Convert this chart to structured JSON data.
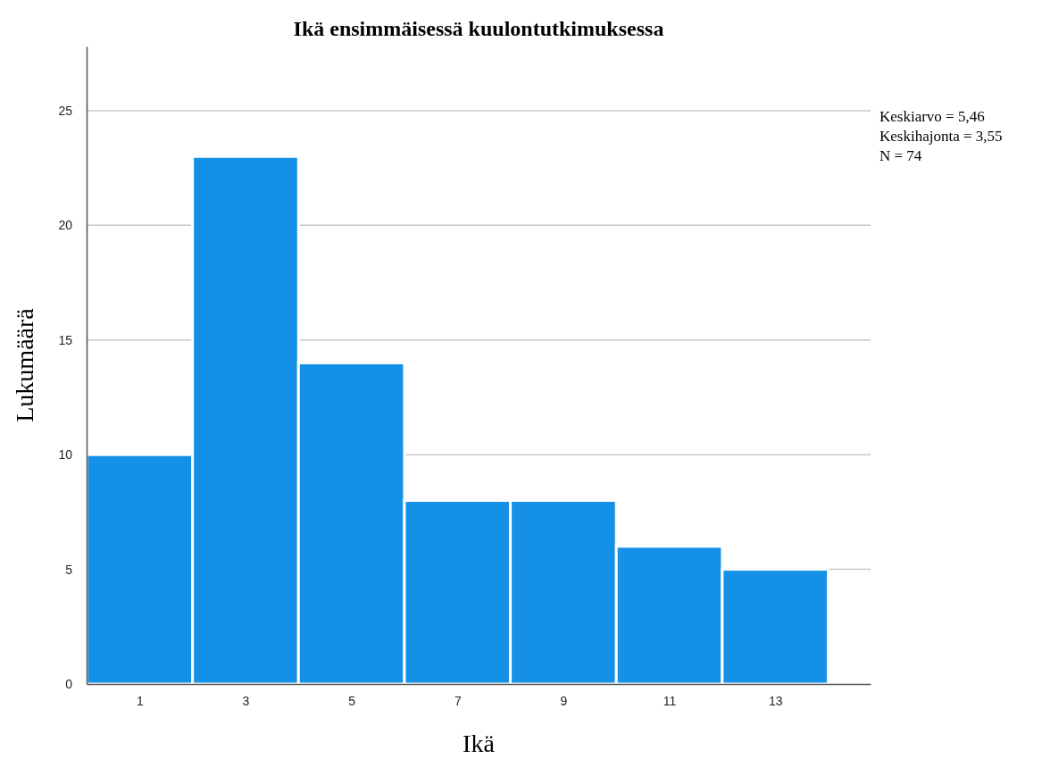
{
  "chart_data": {
    "type": "histogram",
    "title": "Ikä ensimmäisessä kuulontutkimuksessa",
    "xlabel": "Ikä",
    "ylabel": "Lukumäärä",
    "bins": [
      0,
      2,
      4,
      6,
      8,
      10,
      12,
      14
    ],
    "values": [
      10,
      23,
      14,
      8,
      8,
      6,
      5
    ],
    "color": "#1491e6",
    "xlim": [
      0,
      14.8
    ],
    "xticks": [
      1,
      3,
      5,
      7,
      9,
      11,
      13
    ],
    "ylim": [
      0,
      27.8
    ],
    "yticks": [
      0,
      5,
      10,
      15,
      20,
      25
    ],
    "grid": "y",
    "annotations": [
      "Keskiarvo = 5,46",
      "Keskihajonta = 3,55",
      "N = 74"
    ]
  }
}
